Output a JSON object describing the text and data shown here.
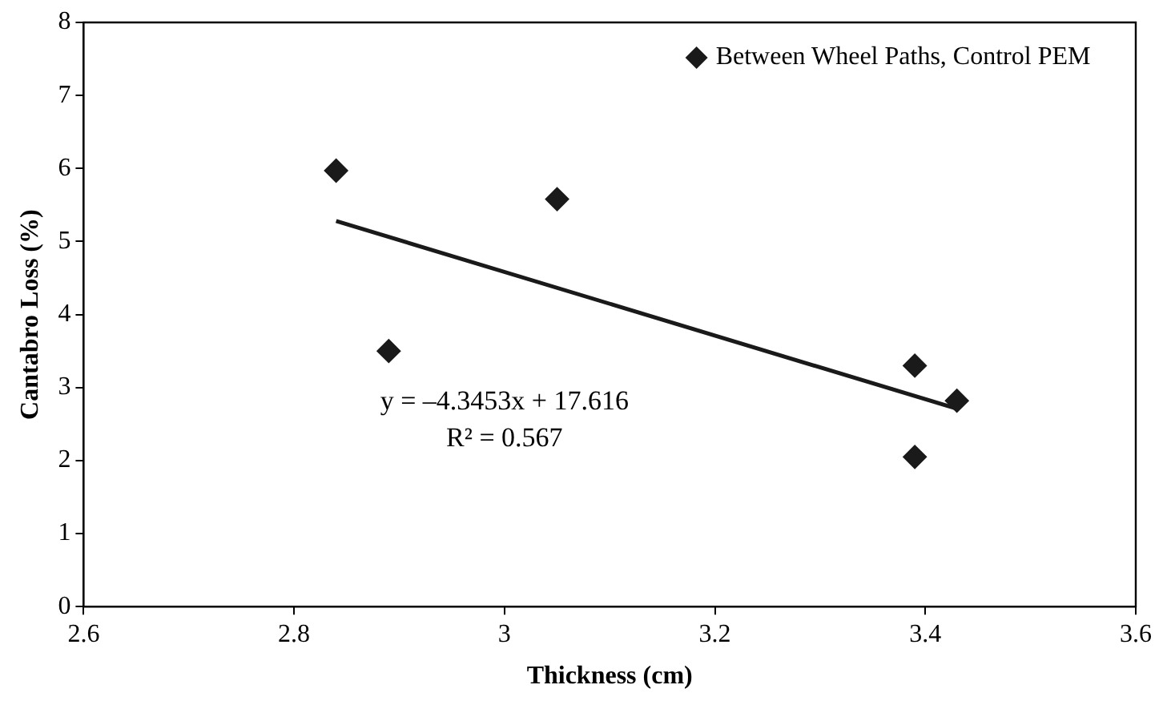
{
  "chart_data": {
    "type": "scatter",
    "xlabel": "Thickness (cm)",
    "ylabel": "Cantabro Loss (%)",
    "xlim": [
      2.6,
      3.6
    ],
    "xticks": [
      2.6,
      2.8,
      3,
      3.2,
      3.4,
      3.6
    ],
    "ylim": [
      0,
      8
    ],
    "yticks": [
      0,
      1,
      2,
      3,
      4,
      5,
      6,
      7,
      8
    ],
    "grid": false,
    "legend": "top right",
    "marker": "diamond",
    "series": [
      {
        "name": "Between Wheel Paths, Control PEM",
        "color": "#1a1a1a",
        "x": [
          2.84,
          2.89,
          3.05,
          3.39,
          3.39,
          3.43
        ],
        "values": [
          5.97,
          3.5,
          5.58,
          3.3,
          2.05,
          2.82
        ]
      },
      {
        "type": "line",
        "color": "#1a1a1a",
        "marker": "none",
        "x": [
          2.84,
          3.43
        ],
        "values": [
          5.28,
          2.71
        ]
      }
    ],
    "annotations": [
      "y = –4.3453x + 17.616",
      "R² = 0.567"
    ]
  }
}
